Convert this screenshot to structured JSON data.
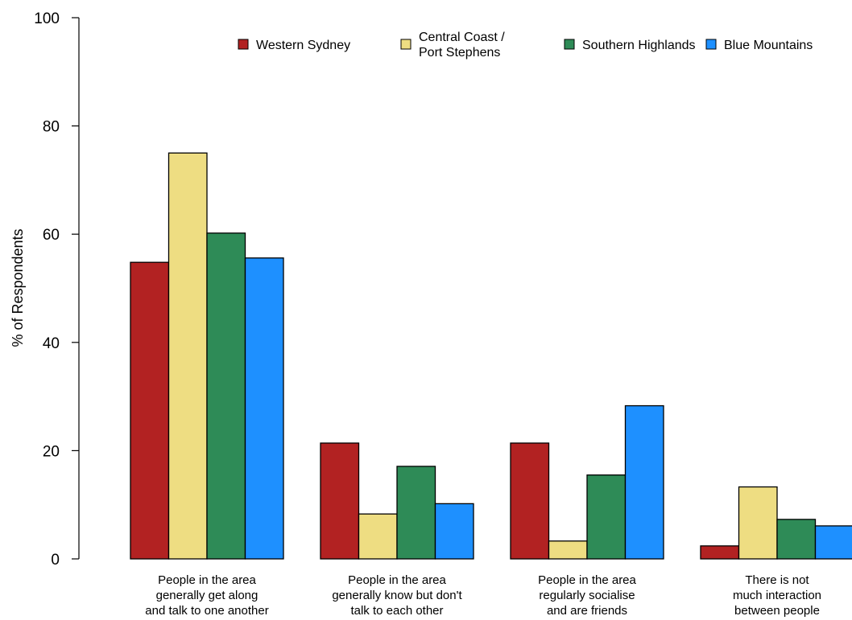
{
  "chart_data": {
    "type": "bar",
    "title": "",
    "xlabel": "",
    "ylabel": "% of Respondents",
    "ylim": [
      0,
      100
    ],
    "yticks": [
      0,
      20,
      40,
      60,
      80,
      100
    ],
    "grid": false,
    "legend_position": "top",
    "categories": [
      [
        "People in the area",
        "generally get along",
        "and talk to one another"
      ],
      [
        "People in the area",
        "generally know but don't",
        "talk to each other"
      ],
      [
        "People in the area",
        "regularly socialise",
        "and are friends"
      ],
      [
        "There is not",
        "much interaction",
        "between people"
      ]
    ],
    "series": [
      {
        "name": [
          "Western Sydney"
        ],
        "color": "#b22222",
        "values": [
          54.8,
          21.4,
          21.4,
          2.4
        ]
      },
      {
        "name": [
          "Central Coast /",
          "Port Stephens"
        ],
        "color": "#eedd82",
        "values": [
          75.0,
          8.3,
          3.3,
          13.3
        ]
      },
      {
        "name": [
          "Southern Highlands"
        ],
        "color": "#2e8b57",
        "values": [
          60.2,
          17.1,
          15.5,
          7.3
        ]
      },
      {
        "name": [
          "Blue Mountains"
        ],
        "color": "#1e90ff",
        "values": [
          55.6,
          10.2,
          28.3,
          6.1
        ]
      }
    ]
  }
}
